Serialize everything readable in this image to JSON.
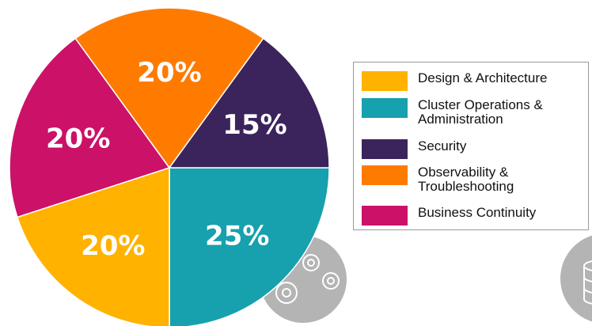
{
  "chart_data": {
    "type": "pie",
    "slices": [
      {
        "label": "Cluster Operations & Administration",
        "value": 25,
        "display": "25%",
        "color": "#17a0ad"
      },
      {
        "label": "Design & Architecture",
        "value": 20,
        "display": "20%",
        "color": "#ffb200"
      },
      {
        "label": "Business Continuity",
        "value": 20,
        "display": "20%",
        "color": "#cb1168"
      },
      {
        "label": "Observability & Troubleshooting",
        "value": 20,
        "display": "20%",
        "color": "#ff7b00"
      },
      {
        "label": "Security",
        "value": 15,
        "display": "15%",
        "color": "#3b235c"
      }
    ],
    "legend": {
      "placement": "right",
      "items": [
        {
          "label": "Design & Architecture",
          "color": "#ffb200"
        },
        {
          "label": "Cluster Operations &\nAdministration",
          "color": "#17a0ad"
        },
        {
          "label": "Security",
          "color": "#3b235c"
        },
        {
          "label": "Observability &\nTroubleshooting",
          "color": "#ff7b00"
        },
        {
          "label": "Business Continuity",
          "color": "#cb1168"
        }
      ]
    }
  },
  "decor": {
    "gears_circle_color": "#b4b4b4",
    "gears_icon": "gears-icon",
    "database_icon": "database-icon"
  }
}
